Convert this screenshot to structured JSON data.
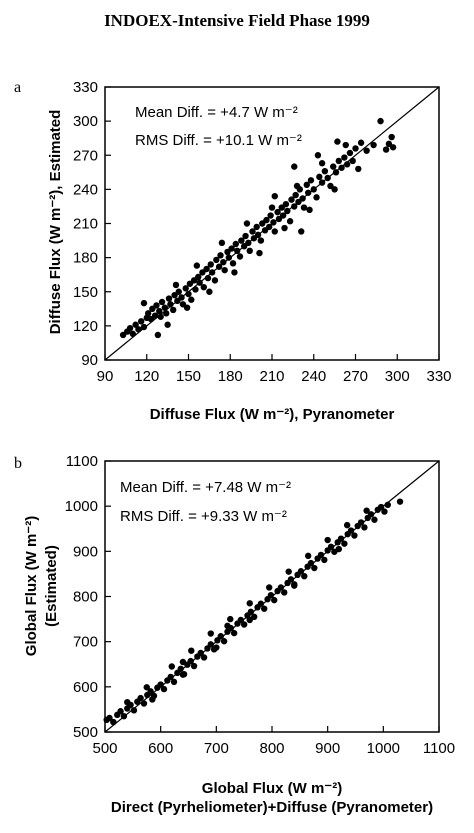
{
  "figure_title": "INDOEX-Intensive Field Phase 1999",
  "chart_data": [
    {
      "type": "scatter",
      "panel_label": "a",
      "xlabel": "Diffuse Flux (W m⁻²), Pyranometer",
      "ylabel": "Diffuse Flux (W m⁻²), Estimated",
      "xlim": [
        90,
        330
      ],
      "ylim": [
        90,
        330
      ],
      "xticks": [
        90,
        120,
        150,
        180,
        210,
        240,
        270,
        300,
        330
      ],
      "yticks": [
        90,
        120,
        150,
        180,
        210,
        240,
        270,
        300,
        330
      ],
      "annotations": [
        "Mean Diff. = +4.7 W m⁻²",
        "RMS Diff. = +10.1 W m⁻²"
      ],
      "grid": false,
      "reference_line": "1:1",
      "points": [
        [
          103,
          112
        ],
        [
          106,
          115
        ],
        [
          108,
          118
        ],
        [
          110,
          113
        ],
        [
          112,
          121
        ],
        [
          114,
          117
        ],
        [
          116,
          124
        ],
        [
          118,
          119
        ],
        [
          120,
          127
        ],
        [
          121,
          131
        ],
        [
          123,
          126
        ],
        [
          124,
          135
        ],
        [
          126,
          129
        ],
        [
          127,
          138
        ],
        [
          129,
          133
        ],
        [
          130,
          128
        ],
        [
          131,
          141
        ],
        [
          133,
          136
        ],
        [
          134,
          131
        ],
        [
          136,
          144
        ],
        [
          137,
          139
        ],
        [
          139,
          134
        ],
        [
          140,
          147
        ],
        [
          142,
          142
        ],
        [
          143,
          150
        ],
        [
          145,
          145
        ],
        [
          146,
          139
        ],
        [
          148,
          153
        ],
        [
          150,
          148
        ],
        [
          151,
          157
        ],
        [
          152,
          143
        ],
        [
          154,
          160
        ],
        [
          155,
          152
        ],
        [
          157,
          163
        ],
        [
          158,
          158
        ],
        [
          160,
          167
        ],
        [
          161,
          154
        ],
        [
          163,
          170
        ],
        [
          164,
          162
        ],
        [
          166,
          174
        ],
        [
          167,
          167
        ],
        [
          169,
          160
        ],
        [
          170,
          178
        ],
        [
          172,
          172
        ],
        [
          173,
          182
        ],
        [
          175,
          176
        ],
        [
          176,
          169
        ],
        [
          178,
          185
        ],
        [
          179,
          180
        ],
        [
          181,
          188
        ],
        [
          182,
          175
        ],
        [
          184,
          192
        ],
        [
          185,
          186
        ],
        [
          187,
          181
        ],
        [
          188,
          195
        ],
        [
          190,
          190
        ],
        [
          191,
          199
        ],
        [
          193,
          193
        ],
        [
          194,
          186
        ],
        [
          196,
          203
        ],
        [
          197,
          197
        ],
        [
          199,
          207
        ],
        [
          200,
          200
        ],
        [
          202,
          195
        ],
        [
          203,
          210
        ],
        [
          205,
          204
        ],
        [
          206,
          213
        ],
        [
          208,
          207
        ],
        [
          209,
          217
        ],
        [
          211,
          211
        ],
        [
          212,
          203
        ],
        [
          214,
          220
        ],
        [
          215,
          214
        ],
        [
          217,
          224
        ],
        [
          218,
          217
        ],
        [
          220,
          227
        ],
        [
          221,
          221
        ],
        [
          223,
          212
        ],
        [
          224,
          231
        ],
        [
          226,
          225
        ],
        [
          227,
          235
        ],
        [
          229,
          229
        ],
        [
          230,
          240
        ],
        [
          232,
          232
        ],
        [
          233,
          224
        ],
        [
          235,
          244
        ],
        [
          236,
          237
        ],
        [
          238,
          248
        ],
        [
          240,
          240
        ],
        [
          242,
          233
        ],
        [
          244,
          251
        ],
        [
          246,
          246
        ],
        [
          248,
          256
        ],
        [
          250,
          250
        ],
        [
          252,
          243
        ],
        [
          254,
          260
        ],
        [
          256,
          255
        ],
        [
          258,
          265
        ],
        [
          260,
          259
        ],
        [
          262,
          268
        ],
        [
          264,
          262
        ],
        [
          266,
          272
        ],
        [
          268,
          265
        ],
        [
          270,
          276
        ],
        [
          274,
          281
        ],
        [
          278,
          274
        ],
        [
          283,
          279
        ],
        [
          288,
          300
        ],
        [
          292,
          275
        ],
        [
          294,
          280
        ],
        [
          296,
          286
        ],
        [
          297,
          277
        ],
        [
          118,
          140
        ],
        [
          128,
          112
        ],
        [
          135,
          121
        ],
        [
          141,
          156
        ],
        [
          149,
          136
        ],
        [
          156,
          173
        ],
        [
          165,
          150
        ],
        [
          174,
          193
        ],
        [
          183,
          167
        ],
        [
          192,
          210
        ],
        [
          201,
          184
        ],
        [
          210,
          224
        ],
        [
          219,
          206
        ],
        [
          228,
          243
        ],
        [
          237,
          222
        ],
        [
          246,
          263
        ],
        [
          255,
          240
        ],
        [
          263,
          279
        ],
        [
          272,
          258
        ],
        [
          226,
          260
        ],
        [
          243,
          270
        ],
        [
          257,
          282
        ],
        [
          231,
          203
        ],
        [
          212,
          234
        ]
      ]
    },
    {
      "type": "scatter",
      "panel_label": "b",
      "xlabel": "Global Flux (W m⁻²)",
      "xlabel2": "Direct (Pyrheliometer)+Diffuse (Pyranometer)",
      "ylabel": "Global Flux (W m⁻²)",
      "ylabel2": "(Estimated)",
      "xlim": [
        500,
        1100
      ],
      "ylim": [
        500,
        1100
      ],
      "xticks": [
        500,
        600,
        700,
        800,
        900,
        1000,
        1100
      ],
      "yticks": [
        500,
        600,
        700,
        800,
        900,
        1000,
        1100
      ],
      "annotations": [
        "Mean Diff. = +7.48 W m⁻²",
        "RMS Diff. = +9.33 W m⁻²"
      ],
      "grid": false,
      "reference_line": "1:1",
      "points": [
        [
          503,
          527
        ],
        [
          508,
          531
        ],
        [
          515,
          522
        ],
        [
          522,
          538
        ],
        [
          528,
          546
        ],
        [
          534,
          535
        ],
        [
          540,
          552
        ],
        [
          546,
          560
        ],
        [
          552,
          548
        ],
        [
          558,
          567
        ],
        [
          564,
          575
        ],
        [
          570,
          563
        ],
        [
          576,
          582
        ],
        [
          582,
          590
        ],
        [
          588,
          580
        ],
        [
          594,
          598
        ],
        [
          600,
          605
        ],
        [
          606,
          595
        ],
        [
          612,
          614
        ],
        [
          618,
          622
        ],
        [
          624,
          611
        ],
        [
          630,
          631
        ],
        [
          636,
          640
        ],
        [
          642,
          628
        ],
        [
          648,
          649
        ],
        [
          654,
          657
        ],
        [
          660,
          646
        ],
        [
          666,
          667
        ],
        [
          672,
          675
        ],
        [
          678,
          665
        ],
        [
          684,
          685
        ],
        [
          690,
          694
        ],
        [
          696,
          683
        ],
        [
          702,
          703
        ],
        [
          708,
          712
        ],
        [
          714,
          701
        ],
        [
          720,
          722
        ],
        [
          726,
          730
        ],
        [
          732,
          719
        ],
        [
          738,
          740
        ],
        [
          744,
          748
        ],
        [
          750,
          738
        ],
        [
          756,
          758
        ],
        [
          762,
          766
        ],
        [
          768,
          755
        ],
        [
          774,
          776
        ],
        [
          780,
          784
        ],
        [
          786,
          773
        ],
        [
          792,
          794
        ],
        [
          798,
          803
        ],
        [
          804,
          792
        ],
        [
          810,
          812
        ],
        [
          816,
          820
        ],
        [
          822,
          809
        ],
        [
          828,
          830
        ],
        [
          834,
          838
        ],
        [
          840,
          827
        ],
        [
          846,
          848
        ],
        [
          852,
          856
        ],
        [
          858,
          845
        ],
        [
          864,
          866
        ],
        [
          870,
          874
        ],
        [
          876,
          863
        ],
        [
          882,
          884
        ],
        [
          888,
          892
        ],
        [
          894,
          881
        ],
        [
          900,
          902
        ],
        [
          906,
          910
        ],
        [
          912,
          899
        ],
        [
          918,
          920
        ],
        [
          924,
          928
        ],
        [
          930,
          917
        ],
        [
          936,
          938
        ],
        [
          942,
          946
        ],
        [
          948,
          935
        ],
        [
          954,
          956
        ],
        [
          960,
          964
        ],
        [
          966,
          953
        ],
        [
          972,
          974
        ],
        [
          978,
          982
        ],
        [
          984,
          970
        ],
        [
          990,
          992
        ],
        [
          996,
          998
        ],
        [
          1002,
          988
        ],
        [
          1008,
          1003
        ],
        [
          1030,
          1010
        ],
        [
          540,
          566
        ],
        [
          575,
          599
        ],
        [
          620,
          645
        ],
        [
          655,
          680
        ],
        [
          690,
          718
        ],
        [
          725,
          750
        ],
        [
          760,
          785
        ],
        [
          795,
          820
        ],
        [
          830,
          855
        ],
        [
          865,
          890
        ],
        [
          900,
          925
        ],
        [
          935,
          958
        ],
        [
          970,
          990
        ],
        [
          585,
          572
        ],
        [
          640,
          627
        ],
        [
          700,
          687
        ],
        [
          760,
          748
        ],
        [
          840,
          824
        ],
        [
          920,
          905
        ],
        [
          640,
          655
        ],
        [
          720,
          735
        ]
      ]
    }
  ]
}
